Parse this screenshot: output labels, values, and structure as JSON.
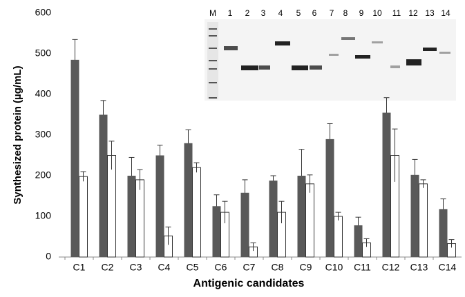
{
  "chart_data": {
    "type": "bar",
    "x_label": "Antigenic candidates",
    "y_label": "Synthesized protein (µg/mL)",
    "categories": [
      "C1",
      "C2",
      "C3",
      "C4",
      "C5",
      "C6",
      "C7",
      "C8",
      "C9",
      "C10",
      "C11",
      "C12",
      "C13",
      "C14"
    ],
    "series": [
      {
        "color": "#595959",
        "values": [
          485,
          350,
          200,
          250,
          280,
          125,
          158,
          188,
          200,
          290,
          78,
          355,
          202,
          118
        ],
        "errors": [
          50,
          35,
          45,
          25,
          33,
          28,
          32,
          12,
          65,
          38,
          20,
          37,
          38,
          25
        ]
      },
      {
        "color": "#ffffff",
        "values": [
          198,
          250,
          190,
          52,
          220,
          110,
          25,
          110,
          180,
          100,
          35,
          250,
          180,
          33
        ],
        "errors": [
          12,
          35,
          25,
          22,
          12,
          27,
          10,
          27,
          22,
          10,
          10,
          65,
          10,
          10
        ]
      }
    ],
    "ylim": [
      0,
      600
    ],
    "yticks": [
      0,
      100,
      200,
      300,
      400,
      500,
      600
    ],
    "grid": false
  },
  "inset": {
    "lane_labels": [
      "M",
      "1",
      "2",
      "3",
      "4",
      "5",
      "6",
      "7",
      "8",
      "9",
      "10",
      "11",
      "12",
      "13",
      "14"
    ]
  }
}
